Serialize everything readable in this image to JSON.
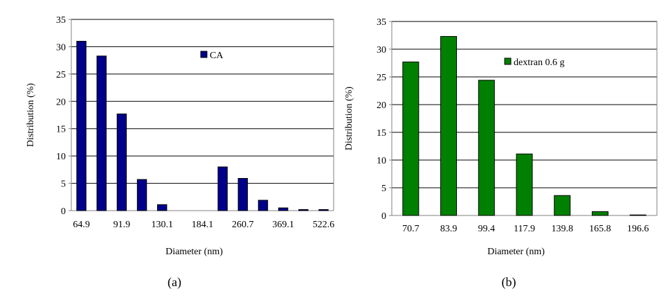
{
  "chart_data": [
    {
      "type": "bar",
      "panel": "a",
      "caption": "(a)",
      "categories": [
        "64.9",
        "",
        "91.9",
        "",
        "130.1",
        "",
        "184.1",
        "",
        "260.7",
        "",
        "369.1",
        "",
        "522.6"
      ],
      "values": [
        31.0,
        28.3,
        17.7,
        5.7,
        1.1,
        0,
        0,
        8.0,
        5.9,
        1.9,
        0.5,
        0.2,
        0.2
      ],
      "series": [
        {
          "name": "CA",
          "color": "#00008b"
        }
      ],
      "xlabel": "Diameter (nm)",
      "ylabel": "Distribution (%)",
      "ylim": [
        0,
        35
      ],
      "yticks": [
        0,
        5,
        10,
        15,
        20,
        25,
        30,
        35
      ],
      "grid": true,
      "legend": "top-right"
    },
    {
      "type": "bar",
      "panel": "b",
      "caption": "(b)",
      "categories": [
        "70.7",
        "83.9",
        "99.4",
        "117.9",
        "139.8",
        "165.8",
        "196.6"
      ],
      "values": [
        27.7,
        32.3,
        24.4,
        11.1,
        3.6,
        0.7,
        0.1
      ],
      "series": [
        {
          "name": "dextran 0.6 g",
          "color": "#008000"
        }
      ],
      "xlabel": "Diameter (nm)",
      "ylabel": "Distribution (%)",
      "ylim": [
        0,
        35
      ],
      "yticks": [
        0,
        5,
        10,
        15,
        20,
        25,
        30,
        35
      ],
      "grid": true,
      "legend": "top-right"
    }
  ]
}
